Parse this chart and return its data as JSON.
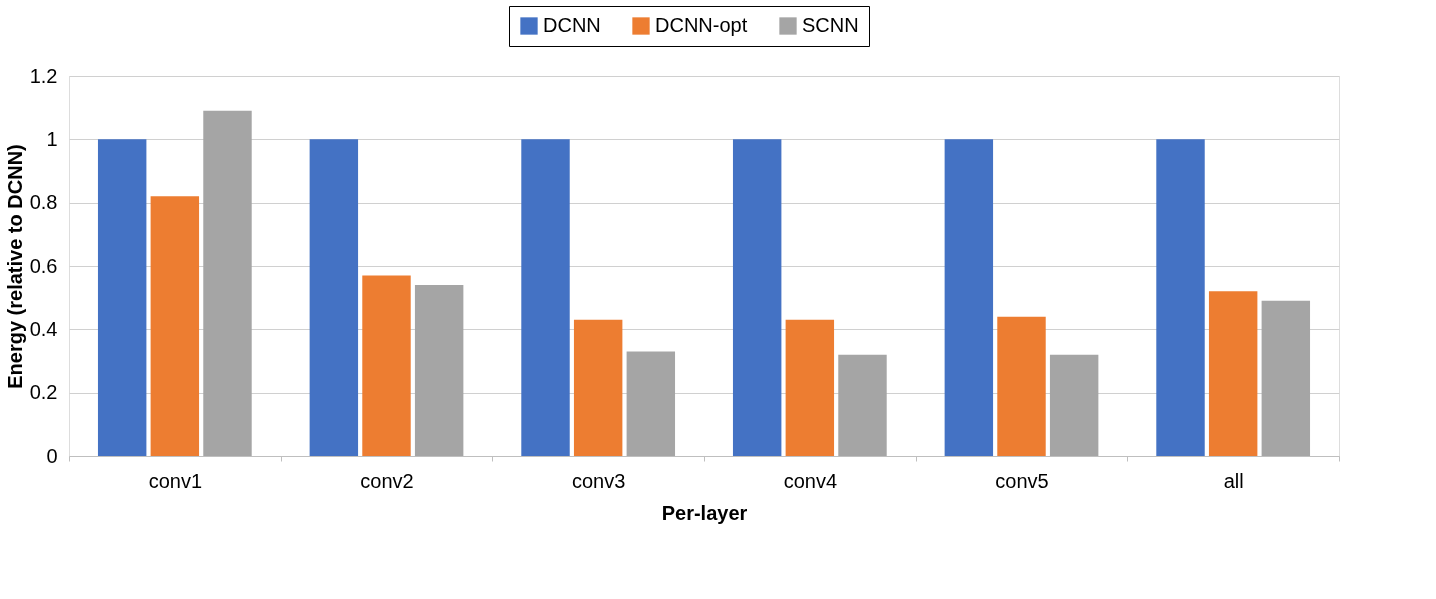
{
  "chart_data": {
    "type": "bar",
    "xlabel": "Per-layer",
    "ylabel": "Energy (relative to DCNN)",
    "categories": [
      "conv1",
      "conv2",
      "conv3",
      "conv4",
      "conv5",
      "all"
    ],
    "series": [
      {
        "name": "DCNN",
        "color": "#4472c4",
        "values": [
          1,
          1,
          1,
          1,
          1,
          1
        ]
      },
      {
        "name": "DCNN-opt",
        "color": "#ed7d31",
        "values": [
          0.82,
          0.57,
          0.43,
          0.43,
          0.44,
          0.52
        ]
      },
      {
        "name": "SCNN",
        "color": "#a5a5a5",
        "values": [
          1.09,
          0.54,
          0.33,
          0.32,
          0.32,
          0.49
        ]
      }
    ],
    "ylim": [
      0,
      1.2
    ],
    "yticks": [
      0,
      0.2,
      0.4,
      0.6,
      0.8,
      1,
      1.2
    ],
    "grid": "y",
    "legend": "top"
  }
}
